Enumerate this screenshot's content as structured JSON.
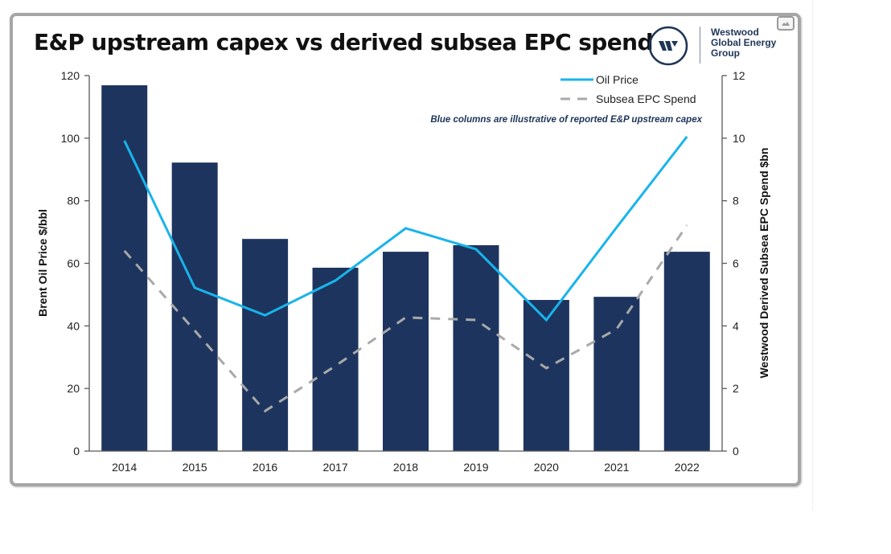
{
  "window": {
    "expand_icon": "image-expand-icon"
  },
  "header": {
    "title": "E&P upstream capex vs derived subsea EPC spend",
    "logo": {
      "mark": "W",
      "lines": [
        "Westwood",
        "Global Energy",
        "Group"
      ]
    }
  },
  "colors": {
    "bars": "#1d355e",
    "oil_price": "#18b4ec",
    "subsea": "#a9a9a9",
    "axis": "#595959",
    "annotation": "#1d3557"
  },
  "chart_data": {
    "type": "bar",
    "title": "E&P upstream capex vs derived subsea EPC spend",
    "categories": [
      "2014",
      "2015",
      "2016",
      "2017",
      "2018",
      "2019",
      "2020",
      "2021",
      "2022"
    ],
    "series": [
      {
        "name": "E&P upstream capex (illustrative columns)",
        "type": "bar",
        "axis": "left",
        "values": [
          116.9,
          92.2,
          67.8,
          58.6,
          63.7,
          65.8,
          48.3,
          49.3,
          63.7
        ]
      },
      {
        "name": "Oil Price",
        "type": "line",
        "axis": "left",
        "values": [
          99.2,
          52.2,
          43.4,
          54.5,
          71.2,
          64.5,
          41.9,
          71.5,
          100.5
        ]
      },
      {
        "name": "Subsea EPC Spend",
        "type": "line-dashed",
        "axis": "right",
        "values": [
          6.4,
          3.85,
          1.28,
          2.72,
          4.27,
          4.19,
          2.65,
          3.9,
          7.22
        ]
      }
    ],
    "ylabel": "Brent Oil Price $/bbl",
    "y2label": "Westwood Derived Subsea EPC Spend $bn",
    "xlabel": "",
    "ylim": [
      0,
      120
    ],
    "y2lim": [
      0,
      12
    ],
    "yticks": [
      "0",
      "20",
      "40",
      "60",
      "80",
      "100",
      "120"
    ],
    "y2ticks": [
      "0",
      "2",
      "4",
      "6",
      "8",
      "10",
      "12"
    ],
    "legend": {
      "placement": "top-right",
      "entries": [
        "Oil Price",
        "Subsea EPC Spend"
      ]
    },
    "annotation": "Blue columns are illustrative of reported E&P upstream capex",
    "grid": false
  }
}
